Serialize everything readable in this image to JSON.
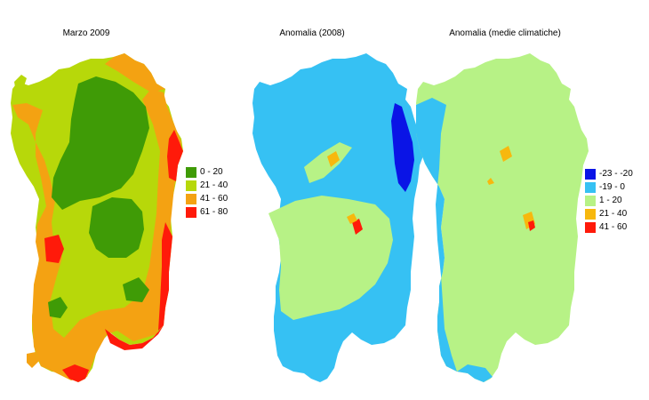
{
  "maps": [
    {
      "id": "march-2009",
      "title": "Marzo 2009",
      "base_color": "#b7d80a",
      "legend": [
        {
          "label": "0 - 20",
          "color": "#3f9b06"
        },
        {
          "label": "21 - 40",
          "color": "#b7d80a"
        },
        {
          "label": "41 - 60",
          "color": "#f4a212"
        },
        {
          "label": "61 - 80",
          "color": "#ff1a0a"
        }
      ]
    },
    {
      "id": "anomaly-2008",
      "title": "Anomalia (2008)",
      "base_color": "#36c1f3",
      "legend": []
    },
    {
      "id": "anomaly-climate",
      "title": "Anomalia (medie climatiche)",
      "base_color": "#b7f286",
      "legend": [
        {
          "label": "-23 - -20",
          "color": "#0a14e6"
        },
        {
          "label": "-19 - 0",
          "color": "#36c1f3"
        },
        {
          "label": "1 - 20",
          "color": "#b7f286"
        },
        {
          "label": "21 - 40",
          "color": "#f7b80e"
        },
        {
          "label": "41 - 60",
          "color": "#ff1a0a"
        }
      ]
    }
  ]
}
